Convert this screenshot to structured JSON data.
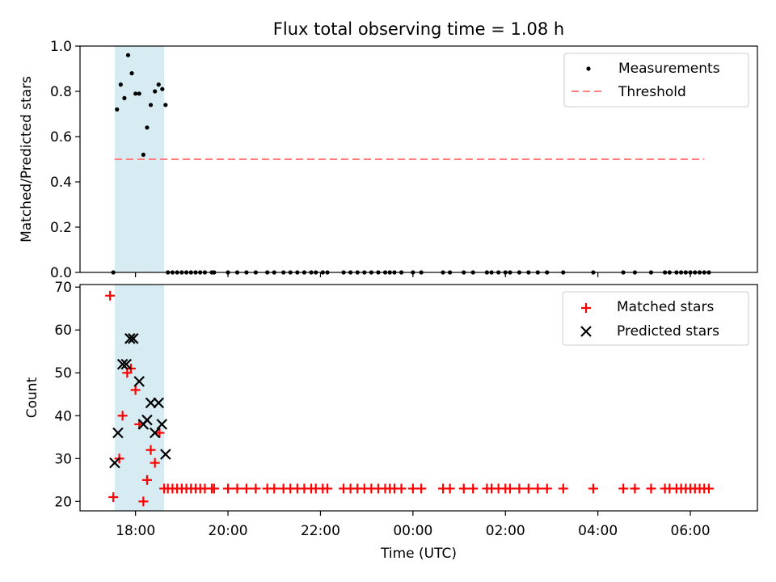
{
  "title": "Flux total observing time = 1.08 h",
  "colors": {
    "shade": "#add8e6",
    "measurement": "#000000",
    "threshold": "#ff7f7f",
    "matched": "#ff0000",
    "predicted": "#000000"
  },
  "chart_data": [
    {
      "type": "scatter",
      "panel": "top",
      "ylabel": "Matched/Predicted stars",
      "xlim_hours": [
        16.8,
        31.45
      ],
      "ylim": [
        0.0,
        1.0
      ],
      "yticks": [
        0.0,
        0.2,
        0.4,
        0.6,
        0.8,
        1.0
      ],
      "ytick_labels": [
        "0.0",
        "0.2",
        "0.4",
        "0.6",
        "0.8",
        "1.0"
      ],
      "shaded_span_hours": [
        17.55,
        18.62
      ],
      "legend": [
        "Measurements",
        "Threshold"
      ],
      "legend_location": "upper right",
      "threshold": {
        "name": "Threshold",
        "value": 0.5,
        "x_range_hours": [
          17.55,
          30.3
        ],
        "style": "dashed"
      },
      "series": [
        {
          "name": "Measurements",
          "marker": "dot",
          "points": [
            [
              17.52,
              0.0
            ],
            [
              17.6,
              0.72
            ],
            [
              17.68,
              0.83
            ],
            [
              17.76,
              0.77
            ],
            [
              17.84,
              0.96
            ],
            [
              17.92,
              0.88
            ],
            [
              18.0,
              0.79
            ],
            [
              18.08,
              0.79
            ],
            [
              18.17,
              0.52
            ],
            [
              18.25,
              0.64
            ],
            [
              18.33,
              0.74
            ],
            [
              18.42,
              0.8
            ],
            [
              18.5,
              0.83
            ],
            [
              18.58,
              0.81
            ],
            [
              18.65,
              0.74
            ],
            [
              18.7,
              0.0
            ],
            [
              18.8,
              0.0
            ],
            [
              18.9,
              0.0
            ],
            [
              19.0,
              0.0
            ],
            [
              19.1,
              0.0
            ],
            [
              19.2,
              0.0
            ],
            [
              19.3,
              0.0
            ],
            [
              19.4,
              0.0
            ],
            [
              19.5,
              0.0
            ],
            [
              19.65,
              0.0
            ],
            [
              19.7,
              0.0
            ],
            [
              20.0,
              0.0
            ],
            [
              20.2,
              0.0
            ],
            [
              20.4,
              0.0
            ],
            [
              20.6,
              0.0
            ],
            [
              20.85,
              0.0
            ],
            [
              21.0,
              0.0
            ],
            [
              21.2,
              0.0
            ],
            [
              21.35,
              0.0
            ],
            [
              21.5,
              0.0
            ],
            [
              21.65,
              0.0
            ],
            [
              21.8,
              0.0
            ],
            [
              21.9,
              0.0
            ],
            [
              22.05,
              0.0
            ],
            [
              22.15,
              0.0
            ],
            [
              22.5,
              0.0
            ],
            [
              22.65,
              0.0
            ],
            [
              22.8,
              0.0
            ],
            [
              22.95,
              0.0
            ],
            [
              23.1,
              0.0
            ],
            [
              23.25,
              0.0
            ],
            [
              23.4,
              0.0
            ],
            [
              23.5,
              0.0
            ],
            [
              23.6,
              0.0
            ],
            [
              23.75,
              0.0
            ],
            [
              24.0,
              0.0
            ],
            [
              24.18,
              0.0
            ],
            [
              24.65,
              0.0
            ],
            [
              24.8,
              0.0
            ],
            [
              25.1,
              0.0
            ],
            [
              25.3,
              0.0
            ],
            [
              25.6,
              0.0
            ],
            [
              25.7,
              0.0
            ],
            [
              25.85,
              0.0
            ],
            [
              26.0,
              0.0
            ],
            [
              26.1,
              0.0
            ],
            [
              26.3,
              0.0
            ],
            [
              26.5,
              0.0
            ],
            [
              26.7,
              0.0
            ],
            [
              26.9,
              0.0
            ],
            [
              27.25,
              0.0
            ],
            [
              27.9,
              0.0
            ],
            [
              28.55,
              0.0
            ],
            [
              28.8,
              0.0
            ],
            [
              29.15,
              0.0
            ],
            [
              29.45,
              0.0
            ],
            [
              29.55,
              0.0
            ],
            [
              29.7,
              0.0
            ],
            [
              29.8,
              0.0
            ],
            [
              29.9,
              0.0
            ],
            [
              30.0,
              0.0
            ],
            [
              30.1,
              0.0
            ],
            [
              30.2,
              0.0
            ],
            [
              30.3,
              0.0
            ],
            [
              30.4,
              0.0
            ]
          ]
        }
      ]
    },
    {
      "type": "scatter",
      "panel": "bottom",
      "xlabel": "Time (UTC)",
      "ylabel": "Count",
      "xlim_hours": [
        16.8,
        31.45
      ],
      "ylim": [
        17.8,
        70.6
      ],
      "xticks_hours": [
        18,
        20,
        22,
        24,
        26,
        28,
        30
      ],
      "xtick_labels": [
        "18:00",
        "20:00",
        "22:00",
        "00:00",
        "02:00",
        "04:00",
        "06:00"
      ],
      "yticks": [
        20,
        30,
        40,
        50,
        60,
        70
      ],
      "ytick_labels": [
        "20",
        "30",
        "40",
        "50",
        "60",
        "70"
      ],
      "shaded_span_hours": [
        17.55,
        18.62
      ],
      "legend": [
        "Matched stars",
        "Predicted stars"
      ],
      "legend_location": "upper right",
      "series": [
        {
          "name": "Matched stars",
          "marker": "plus",
          "points": [
            [
              17.45,
              68
            ],
            [
              17.52,
              21
            ],
            [
              17.65,
              30
            ],
            [
              17.72,
              40
            ],
            [
              17.82,
              50
            ],
            [
              17.9,
              51
            ],
            [
              18.0,
              46
            ],
            [
              18.08,
              38
            ],
            [
              18.17,
              20
            ],
            [
              18.25,
              25
            ],
            [
              18.33,
              32
            ],
            [
              18.42,
              29
            ],
            [
              18.52,
              36
            ],
            [
              18.62,
              23
            ],
            [
              18.7,
              23
            ],
            [
              18.8,
              23
            ],
            [
              18.9,
              23
            ],
            [
              19.0,
              23
            ],
            [
              19.1,
              23
            ],
            [
              19.2,
              23
            ],
            [
              19.3,
              23
            ],
            [
              19.4,
              23
            ],
            [
              19.5,
              23
            ],
            [
              19.65,
              23
            ],
            [
              19.7,
              23
            ],
            [
              20.0,
              23
            ],
            [
              20.2,
              23
            ],
            [
              20.4,
              23
            ],
            [
              20.6,
              23
            ],
            [
              20.85,
              23
            ],
            [
              21.0,
              23
            ],
            [
              21.2,
              23
            ],
            [
              21.35,
              23
            ],
            [
              21.5,
              23
            ],
            [
              21.65,
              23
            ],
            [
              21.8,
              23
            ],
            [
              21.9,
              23
            ],
            [
              22.05,
              23
            ],
            [
              22.15,
              23
            ],
            [
              22.5,
              23
            ],
            [
              22.65,
              23
            ],
            [
              22.8,
              23
            ],
            [
              22.95,
              23
            ],
            [
              23.1,
              23
            ],
            [
              23.25,
              23
            ],
            [
              23.4,
              23
            ],
            [
              23.5,
              23
            ],
            [
              23.6,
              23
            ],
            [
              23.75,
              23
            ],
            [
              24.0,
              23
            ],
            [
              24.18,
              23
            ],
            [
              24.65,
              23
            ],
            [
              24.8,
              23
            ],
            [
              25.1,
              23
            ],
            [
              25.3,
              23
            ],
            [
              25.6,
              23
            ],
            [
              25.7,
              23
            ],
            [
              25.85,
              23
            ],
            [
              26.0,
              23
            ],
            [
              26.1,
              23
            ],
            [
              26.3,
              23
            ],
            [
              26.5,
              23
            ],
            [
              26.7,
              23
            ],
            [
              26.9,
              23
            ],
            [
              27.25,
              23
            ],
            [
              27.9,
              23
            ],
            [
              28.55,
              23
            ],
            [
              28.8,
              23
            ],
            [
              29.15,
              23
            ],
            [
              29.45,
              23
            ],
            [
              29.55,
              23
            ],
            [
              29.7,
              23
            ],
            [
              29.8,
              23
            ],
            [
              29.9,
              23
            ],
            [
              30.0,
              23
            ],
            [
              30.1,
              23
            ],
            [
              30.2,
              23
            ],
            [
              30.3,
              23
            ],
            [
              30.4,
              23
            ]
          ]
        },
        {
          "name": "Predicted stars",
          "marker": "x",
          "points": [
            [
              17.55,
              29
            ],
            [
              17.62,
              36
            ],
            [
              17.72,
              52
            ],
            [
              17.8,
              52
            ],
            [
              17.88,
              58
            ],
            [
              17.95,
              58
            ],
            [
              18.08,
              48
            ],
            [
              18.17,
              38
            ],
            [
              18.25,
              39
            ],
            [
              18.33,
              43
            ],
            [
              18.42,
              36
            ],
            [
              18.5,
              43
            ],
            [
              18.57,
              38
            ],
            [
              18.65,
              31
            ]
          ]
        }
      ]
    }
  ]
}
